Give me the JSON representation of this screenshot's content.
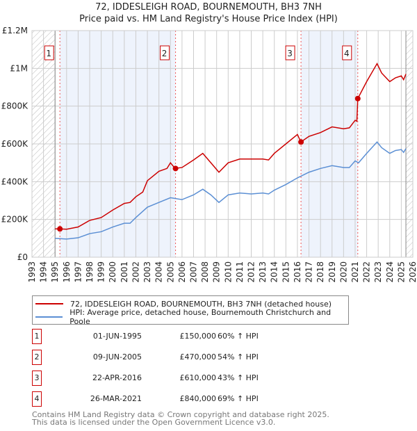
{
  "chart_data": {
    "type": "line",
    "title": "72, IDDESLEIGH ROAD, BOURNEMOUTH, BH3 7NH",
    "subtitle": "Price paid vs. HM Land Registry's House Price Index (HPI)",
    "xlim": [
      1993,
      2026
    ],
    "ylim": [
      0,
      1200000
    ],
    "x_ticks": [
      "1993",
      "1994",
      "1995",
      "1996",
      "1997",
      "1998",
      "1999",
      "2000",
      "2001",
      "2002",
      "2003",
      "2004",
      "2005",
      "2006",
      "2007",
      "2008",
      "2009",
      "2010",
      "2011",
      "2012",
      "2013",
      "2014",
      "2015",
      "2016",
      "2017",
      "2018",
      "2019",
      "2020",
      "2021",
      "2022",
      "2023",
      "2024",
      "2025",
      "2026"
    ],
    "y_ticks": [
      {
        "v": 0,
        "label": "£0"
      },
      {
        "v": 200000,
        "label": "£200K"
      },
      {
        "v": 400000,
        "label": "£400K"
      },
      {
        "v": 600000,
        "label": "£600K"
      },
      {
        "v": 800000,
        "label": "£800K"
      },
      {
        "v": 1000000,
        "label": "£1M"
      },
      {
        "v": 1200000,
        "label": "£1.2M"
      }
    ],
    "grid": true,
    "hatched_before": 1995.0,
    "hatched_after": 2025.4,
    "series": [
      {
        "name": "72, IDDESLEIGH ROAD, BOURNEMOUTH, BH3 7NH (detached house)",
        "color": "#cc0000",
        "points": [
          [
            1995.0,
            150000
          ],
          [
            1995.4,
            150000
          ],
          [
            1996,
            148000
          ],
          [
            1997,
            160000
          ],
          [
            1998,
            195000
          ],
          [
            1999,
            210000
          ],
          [
            2000,
            250000
          ],
          [
            2001,
            285000
          ],
          [
            2001.5,
            290000
          ],
          [
            2002,
            320000
          ],
          [
            2002.6,
            345000
          ],
          [
            2003,
            405000
          ],
          [
            2004,
            455000
          ],
          [
            2004.7,
            470000
          ],
          [
            2005,
            500000
          ],
          [
            2005.4,
            470000
          ],
          [
            2006,
            475000
          ],
          [
            2007,
            515000
          ],
          [
            2007.8,
            550000
          ],
          [
            2008.5,
            500000
          ],
          [
            2009.2,
            450000
          ],
          [
            2010,
            500000
          ],
          [
            2011,
            520000
          ],
          [
            2012,
            520000
          ],
          [
            2013,
            520000
          ],
          [
            2013.5,
            515000
          ],
          [
            2014,
            550000
          ],
          [
            2015,
            600000
          ],
          [
            2016,
            650000
          ],
          [
            2016.3,
            610000
          ],
          [
            2017,
            640000
          ],
          [
            2018,
            660000
          ],
          [
            2019,
            690000
          ],
          [
            2020,
            680000
          ],
          [
            2020.5,
            685000
          ],
          [
            2021,
            725000
          ],
          [
            2021.15,
            720000
          ],
          [
            2021.23,
            840000
          ],
          [
            2022,
            930000
          ],
          [
            2022.9,
            1025000
          ],
          [
            2023.3,
            975000
          ],
          [
            2024,
            930000
          ],
          [
            2024.5,
            950000
          ],
          [
            2025,
            960000
          ],
          [
            2025.2,
            940000
          ],
          [
            2025.4,
            970000
          ]
        ]
      },
      {
        "name": "HPI: Average price, detached house, Bournemouth Christchurch and Poole",
        "color": "#5b8fd4",
        "points": [
          [
            1995.0,
            100000
          ],
          [
            1996,
            96000
          ],
          [
            1997,
            103000
          ],
          [
            1998,
            125000
          ],
          [
            1999,
            135000
          ],
          [
            2000,
            160000
          ],
          [
            2001,
            180000
          ],
          [
            2001.5,
            180000
          ],
          [
            2002,
            210000
          ],
          [
            2003,
            265000
          ],
          [
            2004,
            290000
          ],
          [
            2005,
            315000
          ],
          [
            2006,
            305000
          ],
          [
            2007,
            330000
          ],
          [
            2007.8,
            360000
          ],
          [
            2008.5,
            330000
          ],
          [
            2009.2,
            290000
          ],
          [
            2010,
            330000
          ],
          [
            2011,
            340000
          ],
          [
            2012,
            335000
          ],
          [
            2013,
            340000
          ],
          [
            2013.5,
            335000
          ],
          [
            2014,
            355000
          ],
          [
            2015,
            385000
          ],
          [
            2016,
            420000
          ],
          [
            2017,
            450000
          ],
          [
            2018,
            470000
          ],
          [
            2019,
            485000
          ],
          [
            2020,
            475000
          ],
          [
            2020.5,
            475000
          ],
          [
            2021,
            510000
          ],
          [
            2021.3,
            500000
          ],
          [
            2022,
            550000
          ],
          [
            2022.9,
            610000
          ],
          [
            2023.3,
            580000
          ],
          [
            2024,
            550000
          ],
          [
            2024.5,
            565000
          ],
          [
            2025,
            570000
          ],
          [
            2025.2,
            555000
          ],
          [
            2025.4,
            575000
          ]
        ]
      }
    ],
    "sales": [
      {
        "n": "1",
        "x": 1995.42,
        "y": 150000
      },
      {
        "n": "2",
        "x": 2005.44,
        "y": 470000
      },
      {
        "n": "3",
        "x": 2016.31,
        "y": 610000
      },
      {
        "n": "4",
        "x": 2021.23,
        "y": 840000
      }
    ],
    "shaded_bands": [
      [
        1995.42,
        2005.44
      ],
      [
        2016.31,
        2021.23
      ]
    ]
  },
  "table": [
    {
      "n": "1",
      "date": "01-JUN-1995",
      "price": "£150,000",
      "hpi": "60% ↑ HPI"
    },
    {
      "n": "2",
      "date": "09-JUN-2005",
      "price": "£470,000",
      "hpi": "54% ↑ HPI"
    },
    {
      "n": "3",
      "date": "22-APR-2016",
      "price": "£610,000",
      "hpi": "43% ↑ HPI"
    },
    {
      "n": "4",
      "date": "26-MAR-2021",
      "price": "£840,000",
      "hpi": "69% ↑ HPI"
    }
  ],
  "footer": {
    "line1": "Contains HM Land Registry data © Crown copyright and database right 2025.",
    "line2": "This data is licensed under the Open Government Licence v3.0."
  }
}
